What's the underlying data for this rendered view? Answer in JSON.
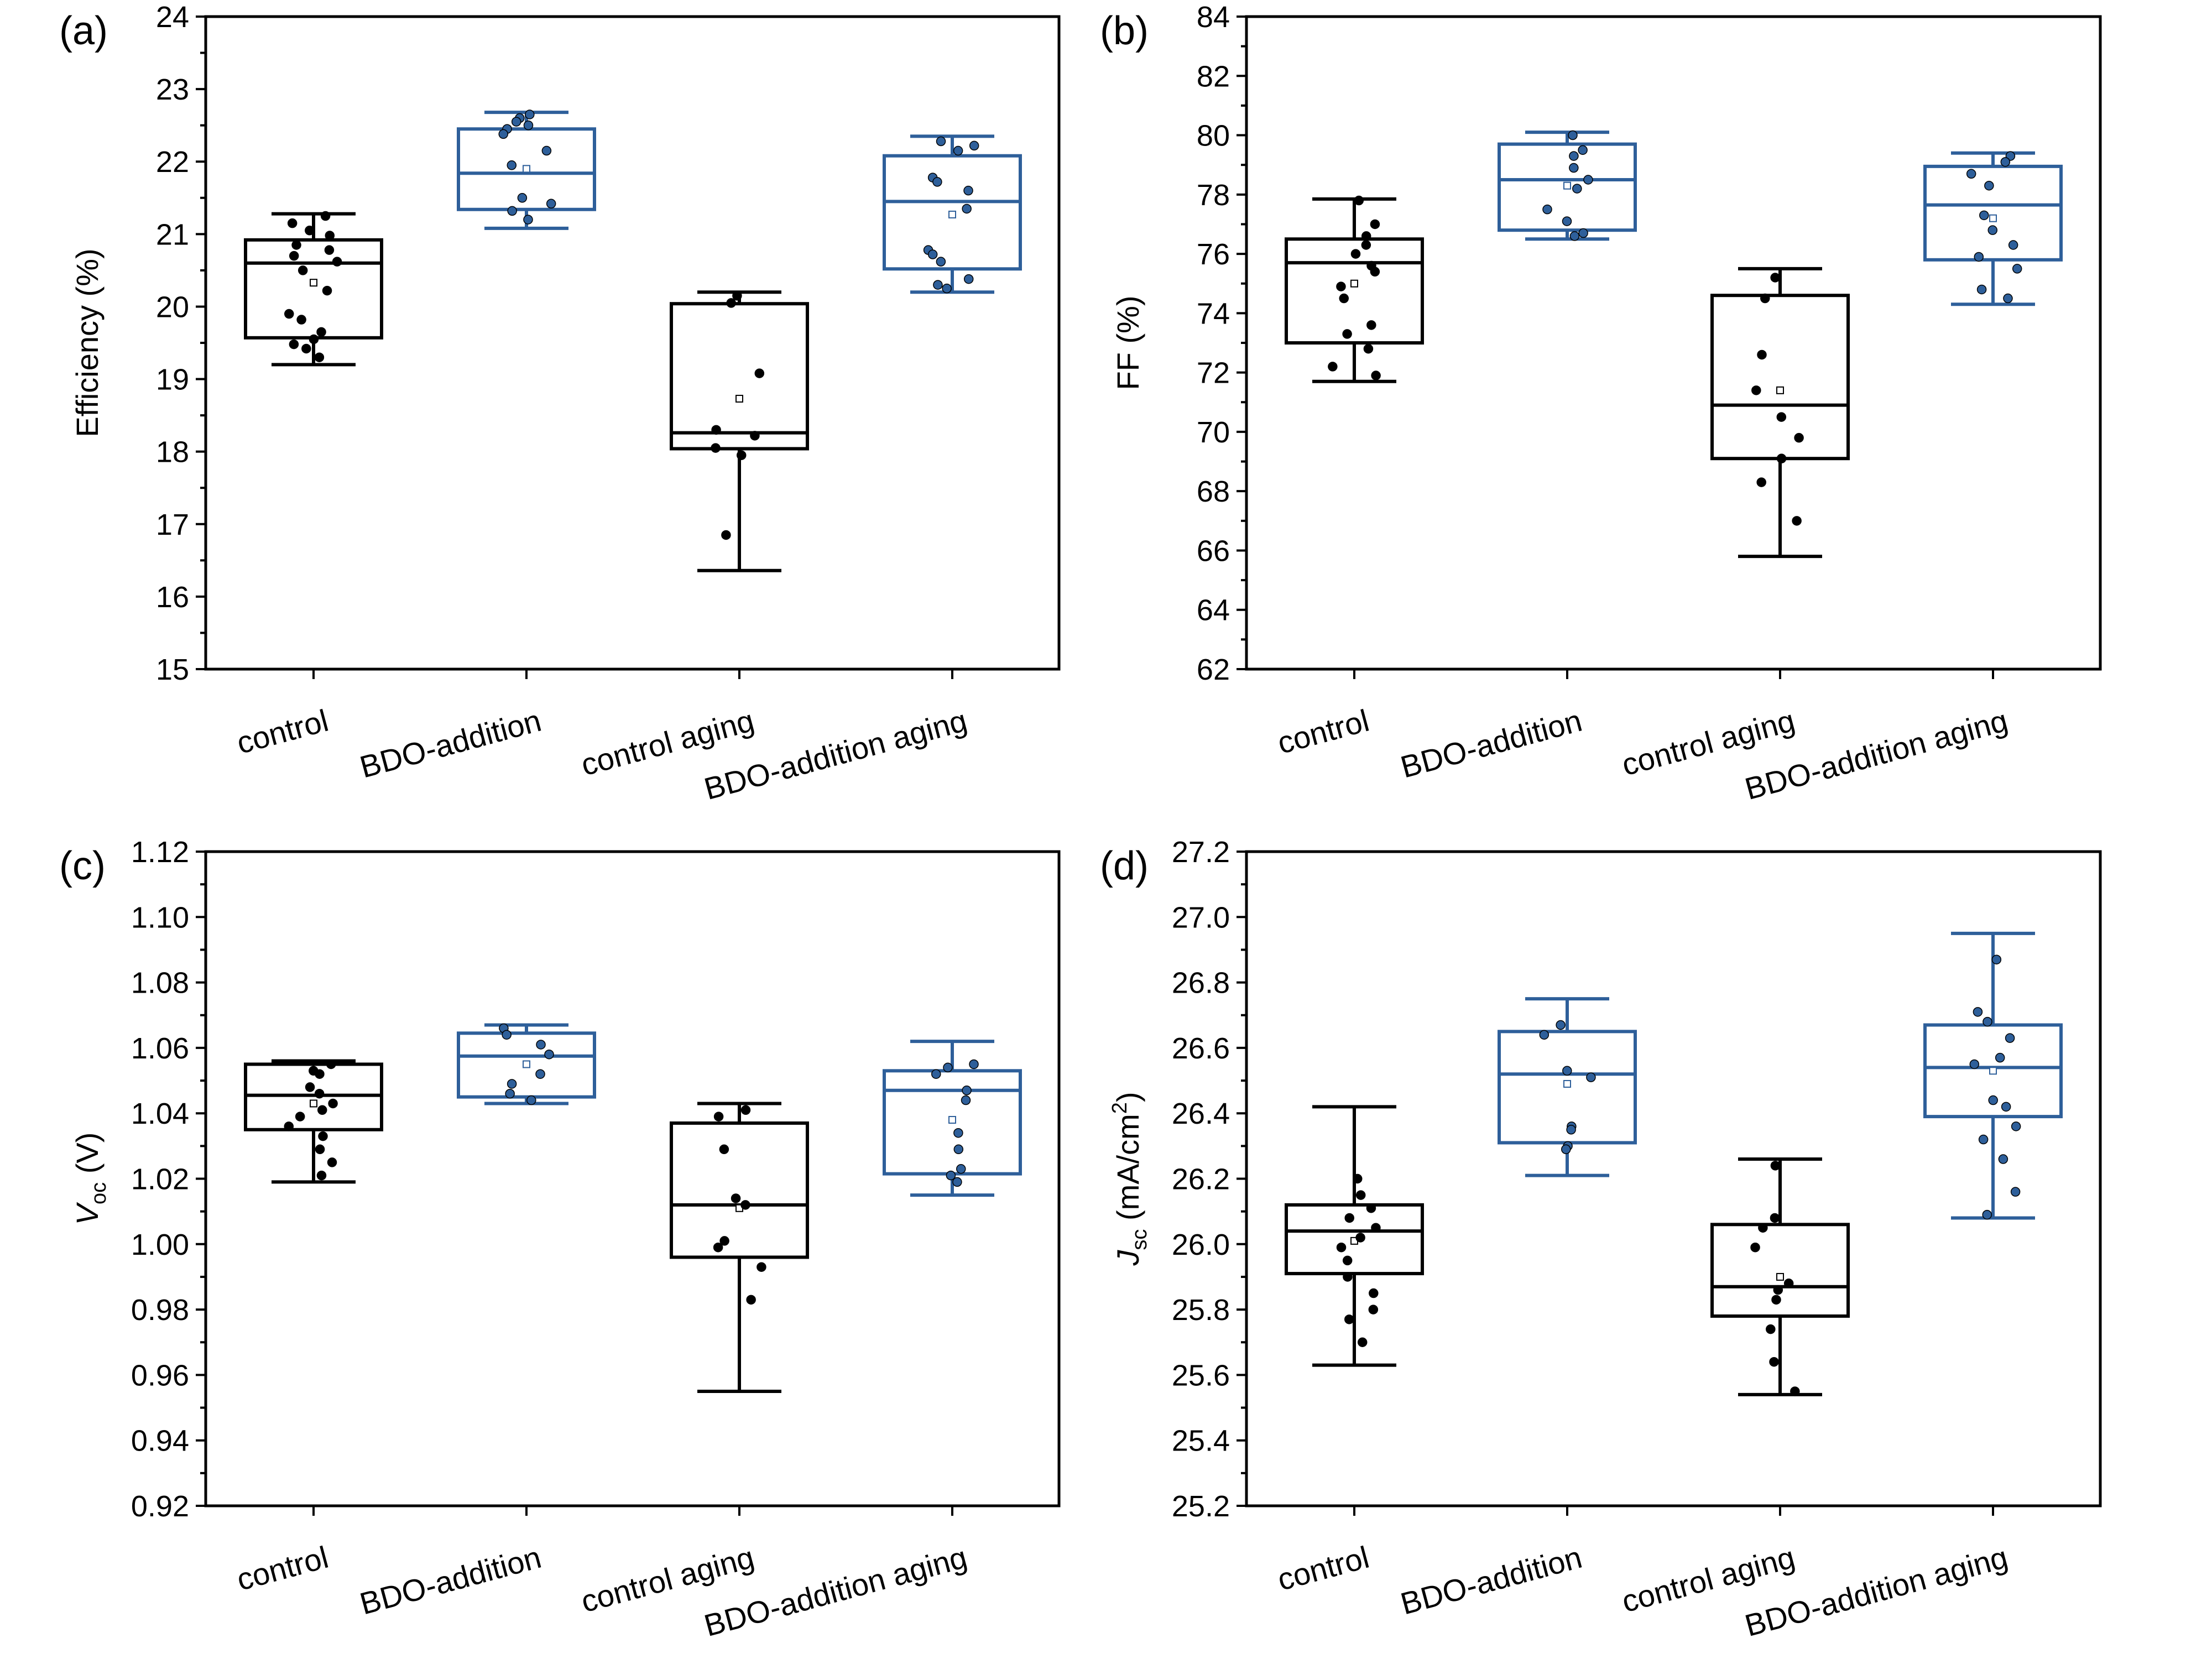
{
  "figure": {
    "colors": {
      "control": "#000000",
      "bdo": "#2e5f9a"
    }
  },
  "chart_data": [
    {
      "type": "box",
      "panel_label": "(a)",
      "title": "",
      "xlabel": "",
      "ylabel": "Efficiency (%)",
      "ylim": [
        15,
        24
      ],
      "yticks": [
        "15",
        "16",
        "17",
        "18",
        "19",
        "20",
        "21",
        "22",
        "23",
        "24"
      ],
      "categories": [
        "control",
        "BDO-addition",
        "control aging",
        "BDO-addition aging"
      ],
      "boxes": [
        {
          "group": "control",
          "min": 19.2,
          "q1": 19.57,
          "median": 20.6,
          "q3": 20.92,
          "max": 21.28,
          "mean": 20.33,
          "points": [
            21.25,
            21.15,
            21.05,
            20.98,
            20.85,
            20.78,
            20.7,
            20.62,
            20.5,
            20.22,
            19.9,
            19.82,
            19.65,
            19.55,
            19.48,
            19.42,
            19.3
          ]
        },
        {
          "group": "BDO-addition",
          "min": 21.08,
          "q1": 21.34,
          "median": 21.84,
          "q3": 22.45,
          "max": 22.68,
          "mean": 21.9,
          "points": [
            22.65,
            22.6,
            22.55,
            22.5,
            22.45,
            22.38,
            22.15,
            21.95,
            21.5,
            21.42,
            21.32,
            21.2
          ]
        },
        {
          "group": "control aging",
          "min": 16.36,
          "q1": 18.04,
          "median": 18.26,
          "q3": 20.04,
          "max": 20.2,
          "mean": 18.73,
          "points": [
            20.15,
            20.05,
            19.08,
            18.3,
            18.22,
            18.05,
            17.95,
            16.85
          ]
        },
        {
          "group": "BDO-addition aging",
          "min": 20.2,
          "q1": 20.52,
          "median": 21.45,
          "q3": 22.08,
          "max": 22.35,
          "mean": 21.27,
          "points": [
            22.28,
            22.22,
            22.15,
            21.78,
            21.72,
            21.6,
            21.35,
            20.78,
            20.72,
            20.62,
            20.38,
            20.3,
            20.25
          ]
        }
      ]
    },
    {
      "type": "box",
      "panel_label": "(b)",
      "title": "",
      "xlabel": "",
      "ylabel": "FF (%)",
      "ylim": [
        62,
        84
      ],
      "yticks": [
        "62",
        "64",
        "66",
        "68",
        "70",
        "72",
        "74",
        "76",
        "78",
        "80",
        "82",
        "84"
      ],
      "categories": [
        "control",
        "BDO-addition",
        "control aging",
        "BDO-addition aging"
      ],
      "boxes": [
        {
          "group": "control",
          "min": 71.7,
          "q1": 73.0,
          "median": 75.7,
          "q3": 76.5,
          "max": 77.85,
          "mean": 75.0,
          "points": [
            77.8,
            77.0,
            76.6,
            76.3,
            76.0,
            75.6,
            75.4,
            74.9,
            74.5,
            73.6,
            73.3,
            72.8,
            72.2,
            71.9
          ]
        },
        {
          "group": "BDO-addition",
          "min": 76.5,
          "q1": 76.8,
          "median": 78.5,
          "q3": 79.7,
          "max": 80.1,
          "mean": 78.3,
          "points": [
            80.0,
            79.5,
            79.3,
            78.9,
            78.5,
            78.2,
            77.5,
            77.1,
            76.7,
            76.6
          ]
        },
        {
          "group": "control aging",
          "min": 65.8,
          "q1": 69.1,
          "median": 70.9,
          "q3": 74.6,
          "max": 75.5,
          "mean": 71.4,
          "points": [
            75.2,
            74.5,
            72.6,
            71.4,
            70.5,
            69.8,
            69.1,
            68.3,
            67.0
          ]
        },
        {
          "group": "BDO-addition aging",
          "min": 74.3,
          "q1": 75.8,
          "median": 77.65,
          "q3": 78.95,
          "max": 79.4,
          "mean": 77.2,
          "points": [
            79.3,
            79.1,
            78.7,
            78.3,
            77.3,
            76.8,
            76.3,
            75.9,
            75.5,
            74.8,
            74.5
          ]
        }
      ]
    },
    {
      "type": "box",
      "panel_label": "(c)",
      "title": "",
      "xlabel": "",
      "ylabel_main": "V",
      "ylabel_sub": "oc",
      "ylabel_rest": " (V)",
      "ylim": [
        0.92,
        1.12
      ],
      "yticks": [
        "0.92",
        "0.94",
        "0.96",
        "0.98",
        "1.00",
        "1.02",
        "1.04",
        "1.06",
        "1.08",
        "1.10",
        "1.12"
      ],
      "categories": [
        "control",
        "BDO-addition",
        "control aging",
        "BDO-addition aging"
      ],
      "boxes": [
        {
          "group": "control",
          "min": 1.019,
          "q1": 1.035,
          "median": 1.0455,
          "q3": 1.055,
          "max": 1.056,
          "mean": 1.043,
          "points": [
            1.055,
            1.053,
            1.052,
            1.048,
            1.046,
            1.043,
            1.041,
            1.039,
            1.036,
            1.033,
            1.029,
            1.025,
            1.021
          ]
        },
        {
          "group": "BDO-addition",
          "min": 1.043,
          "q1": 1.045,
          "median": 1.0575,
          "q3": 1.0645,
          "max": 1.067,
          "mean": 1.055,
          "points": [
            1.066,
            1.064,
            1.061,
            1.058,
            1.052,
            1.049,
            1.046,
            1.044
          ]
        },
        {
          "group": "control aging",
          "min": 0.955,
          "q1": 0.996,
          "median": 1.012,
          "q3": 1.037,
          "max": 1.043,
          "mean": 1.011,
          "points": [
            1.041,
            1.039,
            1.029,
            1.014,
            1.012,
            1.001,
            0.999,
            0.993,
            0.983
          ]
        },
        {
          "group": "BDO-addition aging",
          "min": 1.015,
          "q1": 1.0215,
          "median": 1.047,
          "q3": 1.053,
          "max": 1.062,
          "mean": 1.038,
          "points": [
            1.055,
            1.054,
            1.052,
            1.047,
            1.044,
            1.034,
            1.029,
            1.023,
            1.021,
            1.019
          ]
        }
      ]
    },
    {
      "type": "box",
      "panel_label": "(d)",
      "title": "",
      "xlabel": "",
      "ylabel_main": "J",
      "ylabel_sub": "sc",
      "ylabel_rest": " (mA/cm",
      "ylabel_sup": "2",
      "ylabel_end": ")",
      "ylim": [
        25.2,
        27.2
      ],
      "yticks": [
        "25.2",
        "25.4",
        "25.6",
        "25.8",
        "26.0",
        "26.2",
        "26.4",
        "26.6",
        "26.8",
        "27.0",
        "27.2"
      ],
      "categories": [
        "control",
        "BDO-addition",
        "control aging",
        "BDO-addition aging"
      ],
      "boxes": [
        {
          "group": "control",
          "min": 25.63,
          "q1": 25.91,
          "median": 26.04,
          "q3": 26.12,
          "max": 26.42,
          "mean": 26.01,
          "points": [
            26.2,
            26.15,
            26.11,
            26.08,
            26.05,
            26.02,
            25.99,
            25.95,
            25.9,
            25.85,
            25.8,
            25.77,
            25.7
          ]
        },
        {
          "group": "BDO-addition",
          "min": 26.21,
          "q1": 26.31,
          "median": 26.52,
          "q3": 26.65,
          "max": 26.75,
          "mean": 26.49,
          "points": [
            26.67,
            26.64,
            26.53,
            26.51,
            26.36,
            26.35,
            26.3,
            26.29
          ]
        },
        {
          "group": "control aging",
          "min": 25.54,
          "q1": 25.78,
          "median": 25.87,
          "q3": 26.06,
          "max": 26.26,
          "mean": 25.9,
          "points": [
            26.24,
            26.08,
            26.05,
            25.99,
            25.88,
            25.86,
            25.83,
            25.74,
            25.64,
            25.55
          ]
        },
        {
          "group": "BDO-addition aging",
          "min": 26.08,
          "q1": 26.39,
          "median": 26.54,
          "q3": 26.67,
          "max": 26.95,
          "mean": 26.53,
          "points": [
            26.87,
            26.71,
            26.68,
            26.63,
            26.57,
            26.55,
            26.44,
            26.42,
            26.36,
            26.32,
            26.26,
            26.16,
            26.09
          ]
        }
      ]
    }
  ]
}
